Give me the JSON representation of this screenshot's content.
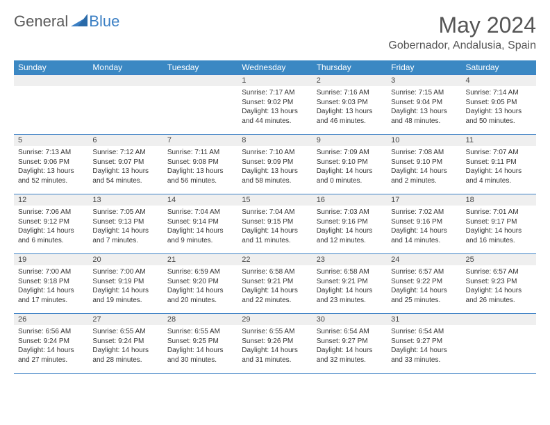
{
  "logo": {
    "general": "General",
    "blue": "Blue"
  },
  "title": "May 2024",
  "location": "Gobernador, Andalusia, Spain",
  "colors": {
    "header_bg": "#3b88c3",
    "rule": "#3b7fc4",
    "daynum_bg": "#efefef",
    "text": "#333333"
  },
  "day_names": [
    "Sunday",
    "Monday",
    "Tuesday",
    "Wednesday",
    "Thursday",
    "Friday",
    "Saturday"
  ],
  "weeks": [
    [
      {
        "num": "",
        "sunrise": "",
        "sunset": "",
        "daylight": ""
      },
      {
        "num": "",
        "sunrise": "",
        "sunset": "",
        "daylight": ""
      },
      {
        "num": "",
        "sunrise": "",
        "sunset": "",
        "daylight": ""
      },
      {
        "num": "1",
        "sunrise": "Sunrise: 7:17 AM",
        "sunset": "Sunset: 9:02 PM",
        "daylight": "Daylight: 13 hours and 44 minutes."
      },
      {
        "num": "2",
        "sunrise": "Sunrise: 7:16 AM",
        "sunset": "Sunset: 9:03 PM",
        "daylight": "Daylight: 13 hours and 46 minutes."
      },
      {
        "num": "3",
        "sunrise": "Sunrise: 7:15 AM",
        "sunset": "Sunset: 9:04 PM",
        "daylight": "Daylight: 13 hours and 48 minutes."
      },
      {
        "num": "4",
        "sunrise": "Sunrise: 7:14 AM",
        "sunset": "Sunset: 9:05 PM",
        "daylight": "Daylight: 13 hours and 50 minutes."
      }
    ],
    [
      {
        "num": "5",
        "sunrise": "Sunrise: 7:13 AM",
        "sunset": "Sunset: 9:06 PM",
        "daylight": "Daylight: 13 hours and 52 minutes."
      },
      {
        "num": "6",
        "sunrise": "Sunrise: 7:12 AM",
        "sunset": "Sunset: 9:07 PM",
        "daylight": "Daylight: 13 hours and 54 minutes."
      },
      {
        "num": "7",
        "sunrise": "Sunrise: 7:11 AM",
        "sunset": "Sunset: 9:08 PM",
        "daylight": "Daylight: 13 hours and 56 minutes."
      },
      {
        "num": "8",
        "sunrise": "Sunrise: 7:10 AM",
        "sunset": "Sunset: 9:09 PM",
        "daylight": "Daylight: 13 hours and 58 minutes."
      },
      {
        "num": "9",
        "sunrise": "Sunrise: 7:09 AM",
        "sunset": "Sunset: 9:10 PM",
        "daylight": "Daylight: 14 hours and 0 minutes."
      },
      {
        "num": "10",
        "sunrise": "Sunrise: 7:08 AM",
        "sunset": "Sunset: 9:10 PM",
        "daylight": "Daylight: 14 hours and 2 minutes."
      },
      {
        "num": "11",
        "sunrise": "Sunrise: 7:07 AM",
        "sunset": "Sunset: 9:11 PM",
        "daylight": "Daylight: 14 hours and 4 minutes."
      }
    ],
    [
      {
        "num": "12",
        "sunrise": "Sunrise: 7:06 AM",
        "sunset": "Sunset: 9:12 PM",
        "daylight": "Daylight: 14 hours and 6 minutes."
      },
      {
        "num": "13",
        "sunrise": "Sunrise: 7:05 AM",
        "sunset": "Sunset: 9:13 PM",
        "daylight": "Daylight: 14 hours and 7 minutes."
      },
      {
        "num": "14",
        "sunrise": "Sunrise: 7:04 AM",
        "sunset": "Sunset: 9:14 PM",
        "daylight": "Daylight: 14 hours and 9 minutes."
      },
      {
        "num": "15",
        "sunrise": "Sunrise: 7:04 AM",
        "sunset": "Sunset: 9:15 PM",
        "daylight": "Daylight: 14 hours and 11 minutes."
      },
      {
        "num": "16",
        "sunrise": "Sunrise: 7:03 AM",
        "sunset": "Sunset: 9:16 PM",
        "daylight": "Daylight: 14 hours and 12 minutes."
      },
      {
        "num": "17",
        "sunrise": "Sunrise: 7:02 AM",
        "sunset": "Sunset: 9:16 PM",
        "daylight": "Daylight: 14 hours and 14 minutes."
      },
      {
        "num": "18",
        "sunrise": "Sunrise: 7:01 AM",
        "sunset": "Sunset: 9:17 PM",
        "daylight": "Daylight: 14 hours and 16 minutes."
      }
    ],
    [
      {
        "num": "19",
        "sunrise": "Sunrise: 7:00 AM",
        "sunset": "Sunset: 9:18 PM",
        "daylight": "Daylight: 14 hours and 17 minutes."
      },
      {
        "num": "20",
        "sunrise": "Sunrise: 7:00 AM",
        "sunset": "Sunset: 9:19 PM",
        "daylight": "Daylight: 14 hours and 19 minutes."
      },
      {
        "num": "21",
        "sunrise": "Sunrise: 6:59 AM",
        "sunset": "Sunset: 9:20 PM",
        "daylight": "Daylight: 14 hours and 20 minutes."
      },
      {
        "num": "22",
        "sunrise": "Sunrise: 6:58 AM",
        "sunset": "Sunset: 9:21 PM",
        "daylight": "Daylight: 14 hours and 22 minutes."
      },
      {
        "num": "23",
        "sunrise": "Sunrise: 6:58 AM",
        "sunset": "Sunset: 9:21 PM",
        "daylight": "Daylight: 14 hours and 23 minutes."
      },
      {
        "num": "24",
        "sunrise": "Sunrise: 6:57 AM",
        "sunset": "Sunset: 9:22 PM",
        "daylight": "Daylight: 14 hours and 25 minutes."
      },
      {
        "num": "25",
        "sunrise": "Sunrise: 6:57 AM",
        "sunset": "Sunset: 9:23 PM",
        "daylight": "Daylight: 14 hours and 26 minutes."
      }
    ],
    [
      {
        "num": "26",
        "sunrise": "Sunrise: 6:56 AM",
        "sunset": "Sunset: 9:24 PM",
        "daylight": "Daylight: 14 hours and 27 minutes."
      },
      {
        "num": "27",
        "sunrise": "Sunrise: 6:55 AM",
        "sunset": "Sunset: 9:24 PM",
        "daylight": "Daylight: 14 hours and 28 minutes."
      },
      {
        "num": "28",
        "sunrise": "Sunrise: 6:55 AM",
        "sunset": "Sunset: 9:25 PM",
        "daylight": "Daylight: 14 hours and 30 minutes."
      },
      {
        "num": "29",
        "sunrise": "Sunrise: 6:55 AM",
        "sunset": "Sunset: 9:26 PM",
        "daylight": "Daylight: 14 hours and 31 minutes."
      },
      {
        "num": "30",
        "sunrise": "Sunrise: 6:54 AM",
        "sunset": "Sunset: 9:27 PM",
        "daylight": "Daylight: 14 hours and 32 minutes."
      },
      {
        "num": "31",
        "sunrise": "Sunrise: 6:54 AM",
        "sunset": "Sunset: 9:27 PM",
        "daylight": "Daylight: 14 hours and 33 minutes."
      },
      {
        "num": "",
        "sunrise": "",
        "sunset": "",
        "daylight": ""
      }
    ]
  ]
}
